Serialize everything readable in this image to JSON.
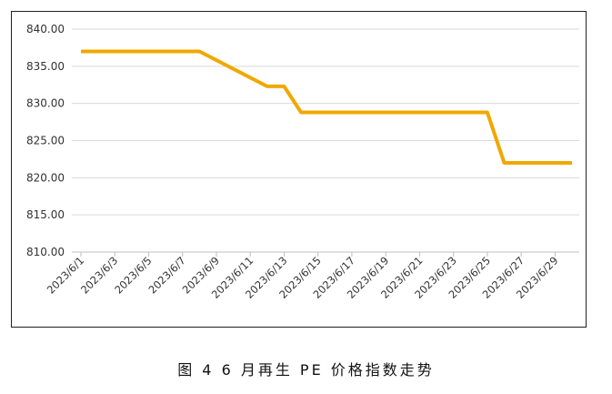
{
  "caption": "图 4  6 月再生 PE 价格指数走势",
  "chart_data": {
    "type": "line",
    "ylim": [
      810,
      840
    ],
    "yticks": [
      "810.00",
      "815.00",
      "820.00",
      "825.00",
      "830.00",
      "835.00",
      "840.00"
    ],
    "x_tick_labels": [
      "2023/6/1",
      "2023/6/3",
      "2023/6/5",
      "2023/6/7",
      "2023/6/9",
      "2023/6/11",
      "2023/6/13",
      "2023/6/15",
      "2023/6/17",
      "2023/6/19",
      "2023/6/21",
      "2023/6/23",
      "2023/6/25",
      "2023/6/27",
      "2023/6/29"
    ],
    "grid": true,
    "legend": "none",
    "colors": {
      "line": "#F0A800",
      "grid": "#D9D9D9",
      "axis": "#BFBFBF"
    },
    "series": [
      {
        "x": [
          "2023/6/1",
          "2023/6/8",
          "2023/6/12",
          "2023/6/13",
          "2023/6/14",
          "2023/6/25",
          "2023/6/26",
          "2023/6/30"
        ],
        "values": [
          837,
          837,
          832.3,
          832.3,
          828.8,
          828.8,
          822,
          822
        ]
      }
    ]
  }
}
